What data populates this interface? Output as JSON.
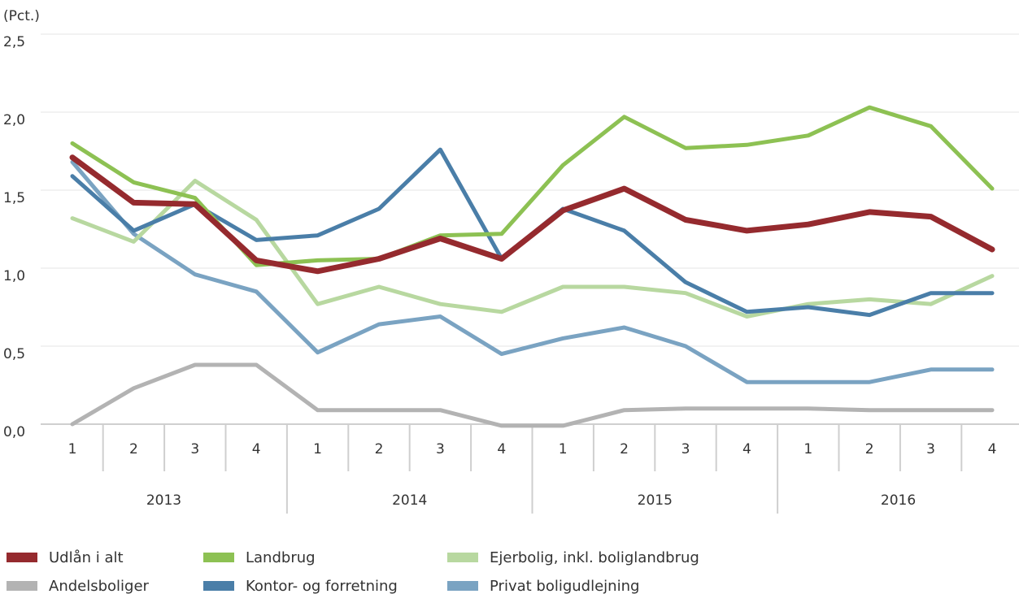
{
  "chart_data": {
    "type": "line",
    "y_unit_label": "(Pct.)",
    "ylim": [
      0,
      2.5
    ],
    "yticks": [
      "0,0",
      "0,5",
      "1,0",
      "1,5",
      "2,0",
      "2,5"
    ],
    "ytick_values": [
      0,
      0.5,
      1.0,
      1.5,
      2.0,
      2.5
    ],
    "grid": true,
    "legend_position": "bottom",
    "quarters": [
      "1",
      "2",
      "3",
      "4",
      "1",
      "2",
      "3",
      "4",
      "1",
      "2",
      "3",
      "4",
      "1",
      "2",
      "3",
      "4"
    ],
    "years": [
      "2013",
      "2014",
      "2015",
      "2016"
    ],
    "series": [
      {
        "name": "Andelsboliger",
        "color": "#b3b3b3",
        "values": [
          0.0,
          0.23,
          0.38,
          0.38,
          0.09,
          0.09,
          0.09,
          -0.01,
          -0.01,
          0.09,
          0.1,
          0.1,
          0.1,
          0.09,
          0.09,
          0.09
        ]
      },
      {
        "name": "Privat boligudlejning",
        "color": "#7aa3c2",
        "values": [
          1.68,
          1.22,
          0.96,
          0.85,
          0.46,
          0.64,
          0.69,
          0.45,
          0.55,
          0.62,
          0.5,
          0.27,
          0.27,
          0.27,
          0.35,
          0.35
        ]
      },
      {
        "name": "Ejerbolig, inkl. boliglandbrug",
        "color": "#b8d8a0",
        "values": [
          1.32,
          1.17,
          1.56,
          1.31,
          0.77,
          0.88,
          0.77,
          0.72,
          0.88,
          0.88,
          0.84,
          0.69,
          0.77,
          0.8,
          0.77,
          0.95
        ]
      },
      {
        "name": "Kontor- og forretning",
        "color": "#4a7ea8",
        "values": [
          1.59,
          1.24,
          1.41,
          1.18,
          1.21,
          1.38,
          1.76,
          1.06,
          1.38,
          1.24,
          0.91,
          0.72,
          0.75,
          0.7,
          0.84,
          0.84
        ]
      },
      {
        "name": "Landbrug",
        "color": "#8dc153",
        "values": [
          1.8,
          1.55,
          1.45,
          1.02,
          1.05,
          1.06,
          1.21,
          1.22,
          1.66,
          1.97,
          1.77,
          1.79,
          1.85,
          2.03,
          1.91,
          1.51
        ]
      },
      {
        "name": "Udlån i alt",
        "color": "#952a2e",
        "values": [
          1.71,
          1.42,
          1.41,
          1.05,
          0.98,
          1.06,
          1.19,
          1.06,
          1.37,
          1.51,
          1.31,
          1.24,
          1.28,
          1.36,
          1.33,
          1.12
        ]
      }
    ],
    "legend": [
      {
        "label": "Udlån i alt",
        "color": "#952a2e"
      },
      {
        "label": "Landbrug",
        "color": "#8dc153"
      },
      {
        "label": "Ejerbolig, inkl. boliglandbrug",
        "color": "#b8d8a0"
      },
      {
        "label": "Andelsboliger",
        "color": "#b3b3b3"
      },
      {
        "label": "Kontor- og forretning",
        "color": "#4a7ea8"
      },
      {
        "label": "Privat boligudlejning",
        "color": "#7aa3c2"
      }
    ]
  }
}
